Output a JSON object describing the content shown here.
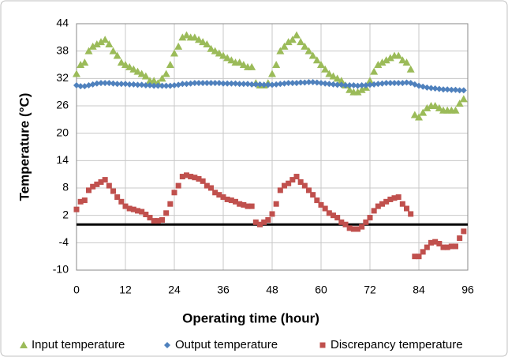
{
  "chart_data": {
    "type": "scatter",
    "x_label": "Operating time (hour)",
    "y_label": "Temperature (°C)",
    "x": [
      0,
      1,
      2,
      3,
      4,
      5,
      6,
      7,
      8,
      9,
      10,
      11,
      12,
      13,
      14,
      15,
      16,
      17,
      18,
      19,
      20,
      21,
      22,
      23,
      24,
      25,
      26,
      27,
      28,
      29,
      30,
      31,
      32,
      33,
      34,
      35,
      36,
      37,
      38,
      39,
      40,
      41,
      42,
      43,
      44,
      45,
      46,
      47,
      48,
      49,
      50,
      51,
      52,
      53,
      54,
      55,
      56,
      57,
      58,
      59,
      60,
      61,
      62,
      63,
      64,
      65,
      66,
      67,
      68,
      69,
      70,
      71,
      72,
      73,
      74,
      75,
      76,
      77,
      78,
      79,
      80,
      81,
      82,
      83,
      84,
      85,
      86,
      87,
      88,
      89,
      90,
      91,
      92,
      93,
      94,
      95
    ],
    "series": [
      {
        "name": "Input temperature",
        "color": "#9bbb59",
        "marker": "triangle",
        "values": [
          33,
          35,
          35.5,
          38,
          39,
          39.5,
          40,
          40.5,
          39.5,
          38,
          37,
          35.5,
          35,
          34.5,
          34,
          33.5,
          33,
          32.5,
          31.5,
          31.5,
          31,
          32,
          33,
          35,
          37.5,
          39,
          41,
          41.5,
          41,
          41,
          40.5,
          40,
          39.5,
          38.5,
          38,
          37.5,
          37,
          36.5,
          36,
          35.5,
          35.5,
          35,
          34.5,
          34.5,
          31,
          30.5,
          30.5,
          31,
          33,
          35,
          38,
          39,
          40,
          40.5,
          41.5,
          40,
          39,
          38,
          37,
          36,
          35,
          34,
          33,
          32.5,
          32,
          31.5,
          30.5,
          29.5,
          29,
          29,
          29.5,
          30,
          31.5,
          33.5,
          35,
          35.5,
          36,
          36.5,
          37,
          37,
          36,
          35.5,
          34,
          24,
          23.5,
          24.5,
          25.5,
          26,
          26,
          25.5,
          25,
          25,
          25,
          25,
          26.5,
          27.5
        ]
      },
      {
        "name": "Output temperature",
        "color": "#4f81bd",
        "marker": "diamond",
        "values": [
          30.5,
          30.3,
          30.3,
          30.5,
          30.7,
          30.9,
          31,
          31,
          31,
          30.9,
          30.8,
          30.8,
          30.8,
          30.7,
          30.7,
          30.6,
          30.6,
          30.5,
          30.5,
          30.4,
          30.4,
          30.4,
          30.4,
          30.4,
          30.5,
          30.6,
          30.8,
          30.8,
          30.9,
          31,
          31,
          31,
          31,
          31,
          31,
          31,
          30.9,
          30.9,
          30.9,
          30.9,
          30.8,
          30.8,
          30.8,
          30.7,
          30.7,
          30.7,
          30.6,
          30.6,
          30.6,
          30.7,
          30.8,
          30.9,
          31,
          31,
          31,
          31.1,
          31.1,
          31.2,
          31.2,
          31.1,
          31,
          30.9,
          30.8,
          30.7,
          30.6,
          30.6,
          30.5,
          30.5,
          30.5,
          30.4,
          30.5,
          30.5,
          30.6,
          30.7,
          30.8,
          30.9,
          31,
          31,
          31,
          31,
          31,
          31.1,
          31,
          30.7,
          30.4,
          30.2,
          30,
          29.9,
          29.8,
          29.7,
          29.6,
          29.6,
          29.5,
          29.5,
          29.4,
          29.4
        ]
      },
      {
        "name": "Discrepancy temperature",
        "color": "#c0504d",
        "marker": "square",
        "values": [
          3.3,
          5,
          5.3,
          7.5,
          8.3,
          8.8,
          9.3,
          9.8,
          8.5,
          7.3,
          6,
          5,
          4,
          3.5,
          3.3,
          3,
          2.8,
          2.2,
          1.5,
          0.8,
          0.8,
          1,
          2.5,
          4.5,
          7,
          8.5,
          10.5,
          10.8,
          10.5,
          10.3,
          10,
          9.5,
          8.5,
          8,
          7,
          6.5,
          6,
          5.5,
          5.3,
          5,
          4.5,
          4.3,
          4,
          4,
          0.5,
          0,
          0.5,
          1,
          2.3,
          4.5,
          7.5,
          8.5,
          9,
          9.8,
          10.5,
          9.3,
          8.5,
          7.5,
          6.5,
          5.3,
          4.3,
          3.5,
          2.5,
          2,
          1.5,
          0.5,
          0,
          -0.8,
          -1,
          -1,
          -0.5,
          0.5,
          1.5,
          3,
          4,
          4.5,
          5,
          5.5,
          5.8,
          6,
          4.5,
          3.5,
          2.3,
          -7,
          -7,
          -6,
          -5,
          -4,
          -3.8,
          -4.2,
          -5,
          -5,
          -4.8,
          -4.8,
          -3,
          -1.5
        ]
      }
    ],
    "reference_line": 0,
    "xlim": [
      0,
      96
    ],
    "xticks": [
      0,
      12,
      24,
      36,
      48,
      60,
      72,
      84,
      96
    ],
    "ylim": [
      -10,
      44
    ],
    "yticks": [
      -10,
      -4,
      2,
      8,
      14,
      20,
      26,
      32,
      38,
      44
    ],
    "grid": true,
    "legend": "bottom"
  }
}
